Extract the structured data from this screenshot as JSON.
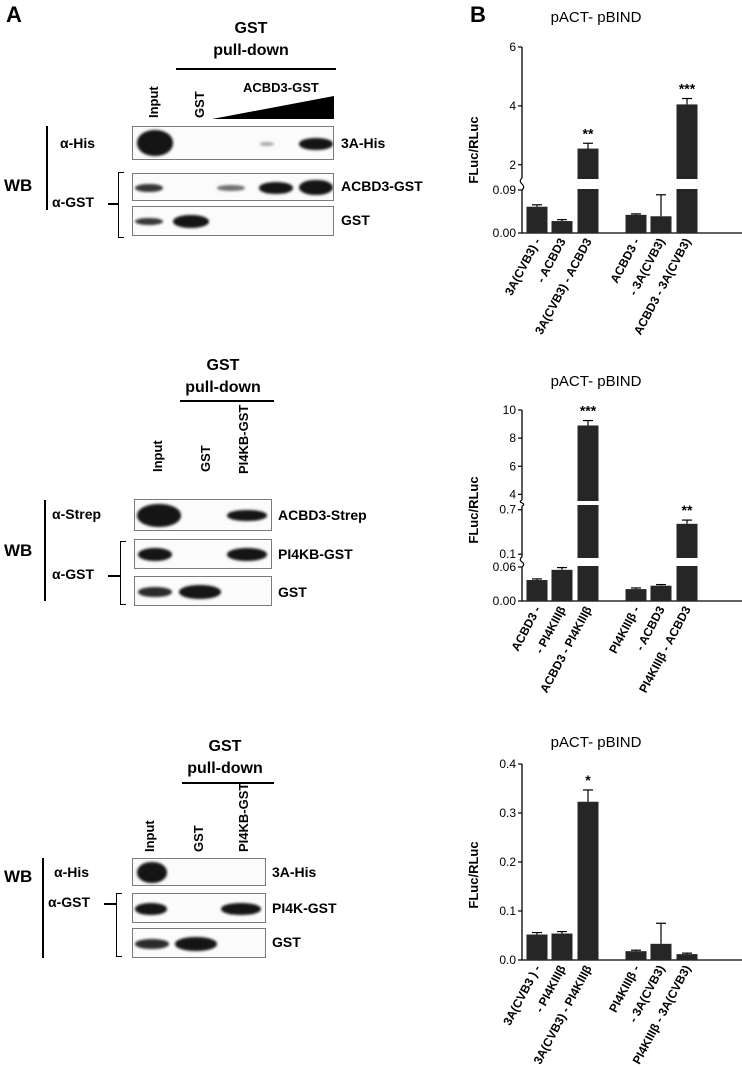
{
  "panels": {
    "a": "A",
    "b": "B"
  },
  "blot1": {
    "header": [
      "GST",
      "pull-down"
    ],
    "lanes": [
      "Input",
      "GST",
      "ACBD3-GST"
    ],
    "wb": "WB",
    "antibodies": [
      "α-His",
      "α-GST"
    ],
    "rows": [
      "3A-His",
      "ACBD3-GST",
      "GST"
    ]
  },
  "blot2": {
    "header": [
      "GST",
      "pull-down"
    ],
    "lanes": [
      "Input",
      "GST",
      "PI4KB-GST"
    ],
    "wb": "WB",
    "antibodies": [
      "α-Strep",
      "α-GST"
    ],
    "rows": [
      "ACBD3-Strep",
      "PI4KB-GST",
      "GST"
    ]
  },
  "blot3": {
    "header": [
      "GST",
      "pull-down"
    ],
    "lanes": [
      "Input",
      "GST",
      "PI4KB-GST"
    ],
    "wb": "WB",
    "antibodies": [
      "α-His",
      "α-GST"
    ],
    "rows": [
      "3A-His",
      "PI4K-GST",
      "GST"
    ]
  },
  "chart_data": [
    {
      "type": "bar",
      "title": "pACT- pBIND",
      "ylabel": "FLuc/RLuc",
      "y_broken": true,
      "yticks_lower": [
        "0.00",
        "0.09"
      ],
      "yticks_upper": [
        "2",
        "4",
        "6"
      ],
      "categories": [
        "3A(CVB3) -",
        "- ACBD3",
        "3A(CVB3) - ACBD3",
        "ACBD3 -",
        "- 3A(CVB3)",
        "ACBD3 - 3A(CVB3)"
      ],
      "values": [
        0.055,
        0.025,
        2.55,
        0.038,
        0.035,
        4.05
      ],
      "errors": [
        0.004,
        0.003,
        0.18,
        0.002,
        0.045,
        0.2
      ],
      "significance": [
        "",
        "",
        "**",
        "",
        "",
        "***"
      ]
    },
    {
      "type": "bar",
      "title": "pACT- pBIND",
      "ylabel": "FLuc/RLuc",
      "y_broken": true,
      "yticks_lower": [
        "0.00",
        "0.06"
      ],
      "yticks_middle": [
        "0.1",
        "0.7"
      ],
      "yticks_upper": [
        "4",
        "6",
        "8",
        "10"
      ],
      "categories": [
        "ACBD3 -",
        "- PI4KIIIβ",
        "ACBD3 - PI4KIIIβ",
        "PI4KIIIβ -",
        "- ACBD3",
        "PI4KIIIβ - ACBD3"
      ],
      "values": [
        0.037,
        0.055,
        8.9,
        0.021,
        0.027,
        0.51
      ],
      "errors": [
        0.002,
        0.004,
        0.35,
        0.002,
        0.002,
        0.05
      ],
      "significance": [
        "",
        "",
        "***",
        "",
        "",
        "**"
      ]
    },
    {
      "type": "bar",
      "title": "pACT- pBIND",
      "ylabel": "FLuc/RLuc",
      "ylim": [
        0,
        0.4
      ],
      "yticks": [
        "0.0",
        "0.1",
        "0.2",
        "0.3",
        "0.4"
      ],
      "categories": [
        "3A(CVB3 ) -",
        "- PI4KIIIβ",
        "3A(CVB3) - PI4KIIIβ",
        "PI4KIIIβ -",
        "- 3A(CVB3)",
        "PI4KIIIβ - 3A(CVB3)"
      ],
      "values": [
        0.052,
        0.054,
        0.323,
        0.018,
        0.033,
        0.012
      ],
      "errors": [
        0.004,
        0.004,
        0.024,
        0.002,
        0.042,
        0.002
      ],
      "significance": [
        "",
        "",
        "*",
        "",
        "",
        ""
      ]
    }
  ]
}
